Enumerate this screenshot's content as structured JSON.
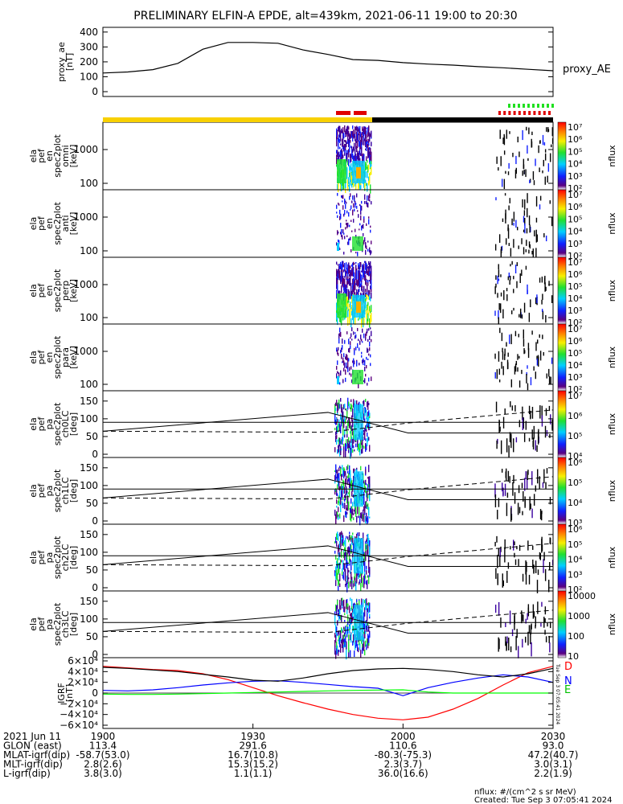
{
  "title": "PRELIMINARY ELFIN-A EPDE, alt=439km, 2021-06-11 19:00 to 20:30",
  "chart_data": [
    {
      "type": "line",
      "panel": "proxy_ae",
      "ylabel": [
        "proxy_ae",
        "[nT]"
      ],
      "yticks": [
        "400",
        "300",
        "200",
        "100",
        "0"
      ],
      "ylim": [
        0,
        410
      ],
      "legend": "proxy_AE",
      "x_minutes": [
        0,
        5,
        10,
        15,
        20,
        25,
        30,
        35,
        40,
        45,
        50,
        55,
        60,
        65,
        70,
        75,
        80,
        85,
        90
      ],
      "values": [
        125,
        132,
        148,
        190,
        285,
        330,
        330,
        325,
        280,
        250,
        215,
        210,
        195,
        185,
        178,
        168,
        160,
        150,
        140
      ]
    },
    {
      "type": "heatmap",
      "panel": "ela pef en spec2plot omni",
      "ylabel": [
        "ela",
        "pef",
        "en",
        "spec2plot",
        "omni",
        "[keV]"
      ],
      "yticks": [
        "1000",
        "100"
      ],
      "cbar_label": "nflux",
      "cbar_ticks": [
        "10⁷",
        "10⁶",
        "10⁵",
        "10⁴",
        "10³",
        "10²"
      ]
    },
    {
      "type": "heatmap",
      "panel": "ela pef en spec2plot anti",
      "ylabel": [
        "ela",
        "pef",
        "en",
        "spec2plot",
        "anti",
        "[keV]"
      ],
      "yticks": [
        "1000",
        "100"
      ],
      "cbar_label": "nflux",
      "cbar_ticks": [
        "10⁷",
        "10⁶",
        "10⁵",
        "10⁴",
        "10³",
        "10²"
      ]
    },
    {
      "type": "heatmap",
      "panel": "ela pef en spec2plot perp",
      "ylabel": [
        "ela",
        "pef",
        "en",
        "spec2plot",
        "perp",
        "[keV]"
      ],
      "yticks": [
        "1000",
        "100"
      ],
      "cbar_label": "nflux",
      "cbar_ticks": [
        "10⁷",
        "10⁶",
        "10⁵",
        "10⁴",
        "10³",
        "10²"
      ]
    },
    {
      "type": "heatmap",
      "panel": "ela pef en spec2plot para",
      "ylabel": [
        "ela",
        "pef",
        "en",
        "spec2plot",
        "para",
        "[keV]"
      ],
      "yticks": [
        "1000",
        "100"
      ],
      "cbar_label": "nflux",
      "cbar_ticks": [
        "10⁷",
        "10⁶",
        "10⁵",
        "10⁴",
        "10³",
        "10²"
      ]
    },
    {
      "type": "heatmap",
      "panel": "ela pef pa spec2plot ch0LC",
      "ylabel": [
        "ela",
        "pef",
        "pa",
        "spec2plot",
        "ch0LC",
        "[deg]"
      ],
      "yticks": [
        "150",
        "100",
        "50",
        "0"
      ],
      "cbar_label": "nflux",
      "cbar_ticks": [
        "10⁷",
        "10⁶",
        "10⁵",
        "10⁴"
      ]
    },
    {
      "type": "heatmap",
      "panel": "ela pef pa spec2plot ch1LC",
      "ylabel": [
        "ela",
        "pef",
        "pa",
        "spec2plot",
        "ch1LC",
        "[deg]"
      ],
      "yticks": [
        "150",
        "100",
        "50",
        "0"
      ],
      "cbar_label": "nflux",
      "cbar_ticks": [
        "10⁶",
        "10⁵",
        "10⁴",
        "10³"
      ]
    },
    {
      "type": "heatmap",
      "panel": "ela pef pa spec2plot ch2LC",
      "ylabel": [
        "ela",
        "pef",
        "pa",
        "spec2plot",
        "ch2LC",
        "[deg]"
      ],
      "yticks": [
        "150",
        "100",
        "50",
        "0"
      ],
      "cbar_label": "nflux",
      "cbar_ticks": [
        "10⁶",
        "10⁵",
        "10⁴",
        "10³",
        "10²"
      ]
    },
    {
      "type": "heatmap",
      "panel": "ela pef pa spec2plot ch3LC",
      "ylabel": [
        "ela",
        "pef",
        "pa",
        "spec2plot",
        "ch3LC",
        "[deg]"
      ],
      "yticks": [
        "150",
        "100",
        "50",
        "0"
      ],
      "cbar_label": "nflux",
      "cbar_ticks": [
        "10000",
        "1000",
        "100",
        "10"
      ]
    },
    {
      "type": "line",
      "panel": "IGRF",
      "ylabel": [
        "IGRF",
        "[nT]"
      ],
      "yticks": [
        "6×10⁴",
        "4×10⁴",
        "2×10⁴",
        "0",
        "−2×10⁴",
        "−4×10⁴",
        "−6×10⁴"
      ],
      "ylim": [
        -66000,
        66000
      ],
      "x_minutes": [
        0,
        5,
        10,
        15,
        20,
        25,
        30,
        35,
        40,
        45,
        50,
        55,
        60,
        65,
        70,
        75,
        80,
        85,
        90
      ],
      "series": [
        {
          "name": "D",
          "color": "#ff0000",
          "values": [
            50000,
            47000,
            44000,
            42000,
            36000,
            25000,
            10000,
            -5000,
            -18000,
            -30000,
            -40000,
            -47000,
            -50000,
            -45000,
            -30000,
            -10000,
            15000,
            38000,
            50000
          ]
        },
        {
          "name": "N",
          "color": "#0000ff",
          "values": [
            5000,
            4000,
            6000,
            10000,
            15000,
            19000,
            22000,
            23000,
            20000,
            16000,
            12000,
            9000,
            -5000,
            10000,
            20000,
            28000,
            34000,
            30000,
            20000
          ]
        },
        {
          "name": "E",
          "color": "#00ff00",
          "values": [
            -2000,
            -2500,
            -2500,
            -2000,
            -1000,
            0,
            1000,
            2000,
            3000,
            4000,
            5000,
            5500,
            6000,
            2000,
            0,
            0,
            0,
            0,
            0
          ]
        },
        {
          "name": "",
          "color": "#000000",
          "values": [
            48000,
            46000,
            43000,
            40000,
            35000,
            30000,
            24000,
            22000,
            28000,
            36000,
            42000,
            45000,
            46000,
            44000,
            40000,
            34000,
            30000,
            36000,
            46000
          ]
        }
      ]
    }
  ],
  "orbit_footer": {
    "rows": [
      {
        "label": "2021 Jun 11",
        "values": [
          "1900",
          "1930",
          "2000",
          "2030"
        ]
      },
      {
        "label": "GLON (east)",
        "values": [
          "113.4",
          "291.6",
          "110.6",
          "93.0"
        ]
      },
      {
        "label": "MLAT-igrf(dip)",
        "values": [
          "-58.7(53.0)",
          "16.7(10.8)",
          "-80.3(-75.3)",
          "47.2(40.7)"
        ]
      },
      {
        "label": "MLT-igrf(dip)",
        "values": [
          "2.8(2.6)",
          "15.3(15.2)",
          "2.3(3.7)",
          "3.0(3.1)"
        ]
      },
      {
        "label": "L-igrf(dip)",
        "values": [
          "3.8(3.0)",
          "1.1(1.1)",
          "36.0(16.6)",
          "2.2(1.9)"
        ]
      }
    ]
  },
  "units_note": "nflux: #/(cm^2 s sr MeV)",
  "created_note": "Created: Tue Sep  3 07:05:41 2024",
  "side_stamp": "Tue Sep  3 07:05:41 2024"
}
